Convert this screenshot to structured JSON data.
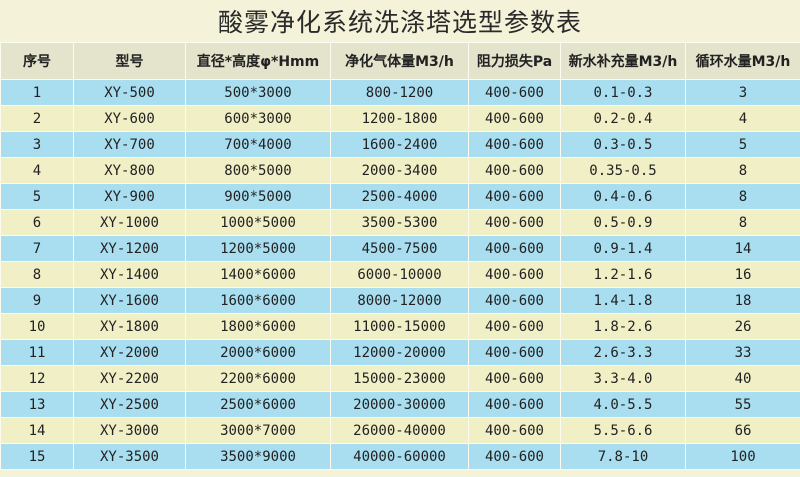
{
  "title": "酸雾净化系统洗涤塔选型参数表",
  "colors": {
    "row_blue": "#a9def0",
    "row_cream": "#f1efc6",
    "header": "#e4e3cc"
  },
  "columns": [
    "序号",
    "型号",
    "直径*高度φ*Hmm",
    "净化气体量M3/h",
    "阻力损失Pa",
    "新水补充量M3/h",
    "循环水量M3/h"
  ],
  "rows": [
    [
      "1",
      "XY-500",
      "500*3000",
      "800-1200",
      "400-600",
      "0.1-0.3",
      "3"
    ],
    [
      "2",
      "XY-600",
      "600*3000",
      "1200-1800",
      "400-600",
      "0.2-0.4",
      "4"
    ],
    [
      "3",
      "XY-700",
      "700*4000",
      "1600-2400",
      "400-600",
      "0.3-0.5",
      "5"
    ],
    [
      "4",
      "XY-800",
      "800*5000",
      "2000-3400",
      "400-600",
      "0.35-0.5",
      "8"
    ],
    [
      "5",
      "XY-900",
      "900*5000",
      "2500-4000",
      "400-600",
      "0.4-0.6",
      "8"
    ],
    [
      "6",
      "XY-1000",
      "1000*5000",
      "3500-5300",
      "400-600",
      "0.5-0.9",
      "8"
    ],
    [
      "7",
      "XY-1200",
      "1200*5000",
      "4500-7500",
      "400-600",
      "0.9-1.4",
      "14"
    ],
    [
      "8",
      "XY-1400",
      "1400*6000",
      "6000-10000",
      "400-600",
      "1.2-1.6",
      "16"
    ],
    [
      "9",
      "XY-1600",
      "1600*6000",
      "8000-12000",
      "400-600",
      "1.4-1.8",
      "18"
    ],
    [
      "10",
      "XY-1800",
      "1800*6000",
      "11000-15000",
      "400-600",
      "1.8-2.6",
      "26"
    ],
    [
      "11",
      "XY-2000",
      "2000*6000",
      "12000-20000",
      "400-600",
      "2.6-3.3",
      "33"
    ],
    [
      "12",
      "XY-2200",
      "2200*6000",
      "15000-23000",
      "400-600",
      "3.3-4.0",
      "40"
    ],
    [
      "13",
      "XY-2500",
      "2500*6000",
      "20000-30000",
      "400-600",
      "4.0-5.5",
      "55"
    ],
    [
      "14",
      "XY-3000",
      "3000*7000",
      "26000-40000",
      "400-600",
      "5.5-6.6",
      "66"
    ],
    [
      "15",
      "XY-3500",
      "3500*9000",
      "40000-60000",
      "400-600",
      "7.8-10",
      "100"
    ]
  ]
}
